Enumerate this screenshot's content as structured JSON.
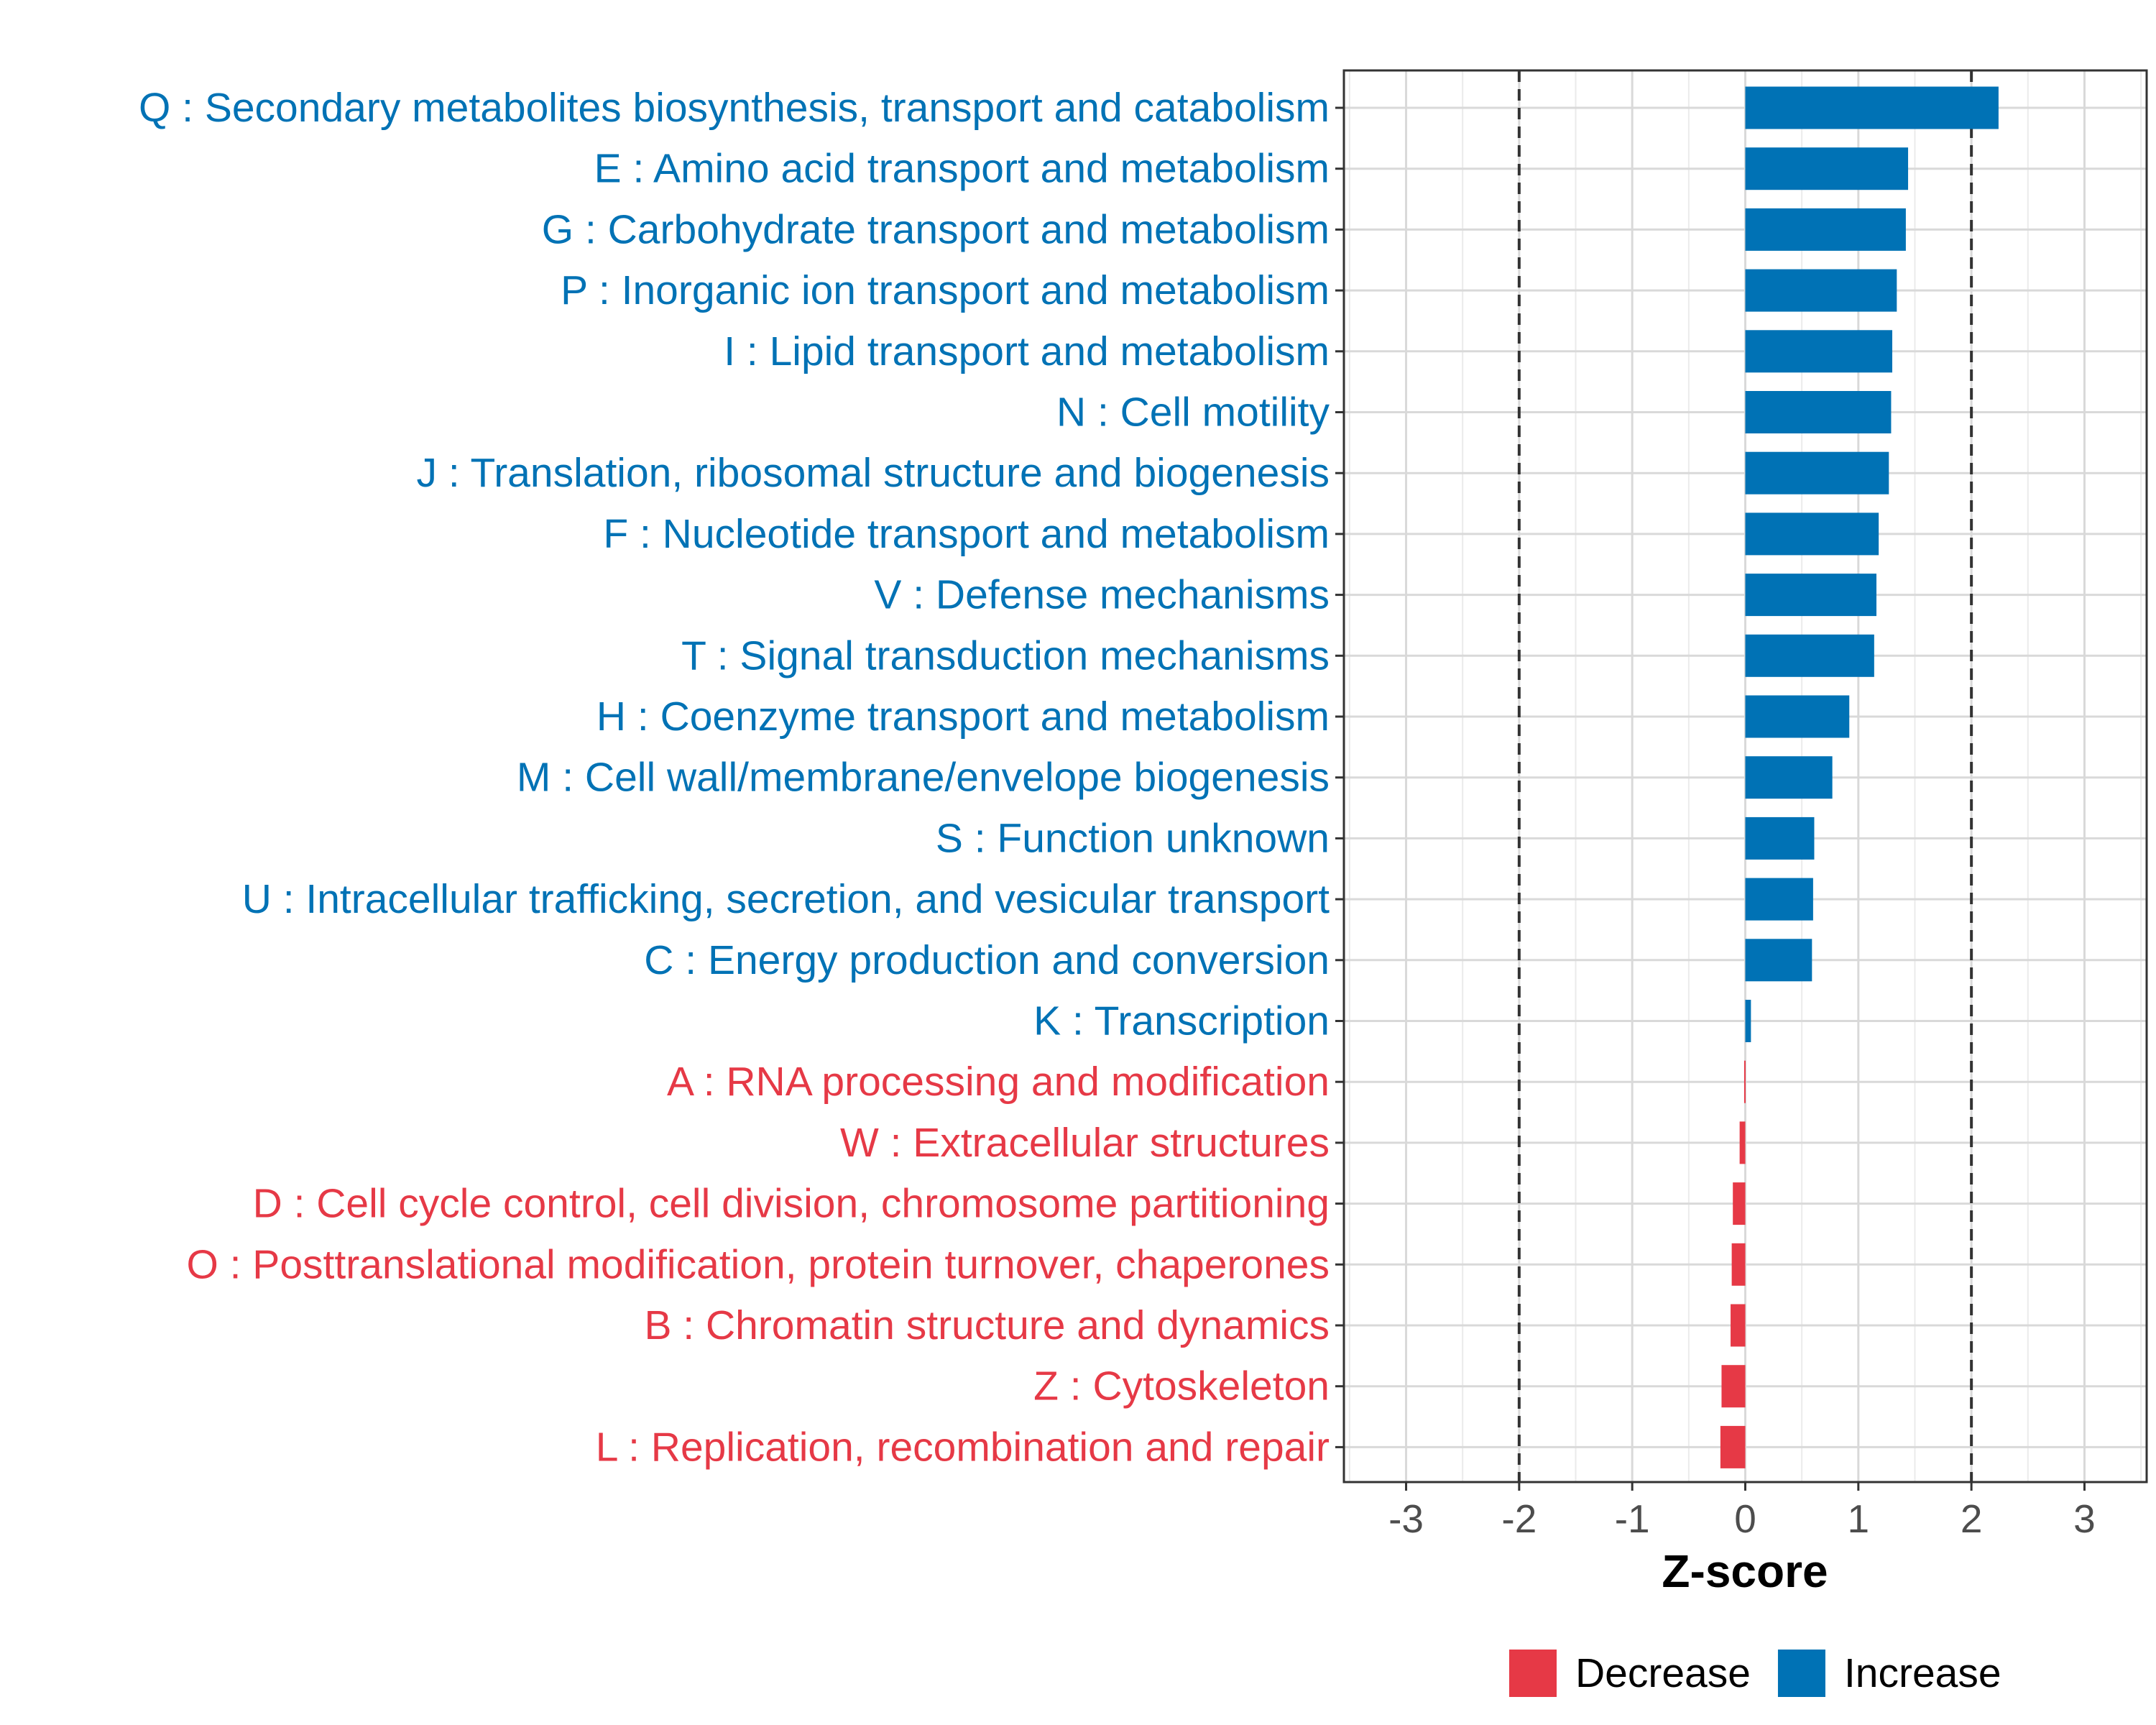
{
  "chart_data": {
    "type": "bar",
    "orientation": "horizontal",
    "xlabel": "Z-score",
    "xlim": [
      -3.55,
      3.55
    ],
    "xticks": [
      -3,
      -2,
      -1,
      0,
      1,
      2,
      3
    ],
    "xtick_labels": [
      "-3",
      "-2",
      "-1",
      "0",
      "1",
      "2",
      "3"
    ],
    "reference_lines": [
      -2,
      2
    ],
    "grid": true,
    "colors": {
      "Increase": "#0072b5",
      "Decrease": "#e63946"
    },
    "categories": [
      "Q : Secondary metabolites biosynthesis, transport and catabolism",
      "E : Amino acid transport and metabolism",
      "G : Carbohydrate transport and metabolism",
      "P : Inorganic ion transport and metabolism",
      "I : Lipid transport and metabolism",
      "N : Cell motility",
      "J : Translation, ribosomal structure and biogenesis",
      "F : Nucleotide transport and metabolism",
      "V : Defense mechanisms",
      "T : Signal transduction mechanisms",
      "H : Coenzyme transport and metabolism",
      "M : Cell wall/membrane/envelope biogenesis",
      "S : Function unknown",
      "U : Intracellular trafficking, secretion, and vesicular transport",
      "C : Energy production and conversion",
      "K : Transcription",
      "A : RNA processing and modification",
      "W : Extracellular structures",
      "D : Cell cycle control, cell division, chromosome partitioning",
      "O : Posttranslational modification, protein turnover, chaperones",
      "B : Chromatin structure and dynamics",
      "Z : Cytoskeleton",
      "L : Replication, recombination and repair"
    ],
    "values": [
      2.24,
      1.44,
      1.42,
      1.34,
      1.3,
      1.29,
      1.27,
      1.18,
      1.16,
      1.14,
      0.92,
      0.77,
      0.61,
      0.6,
      0.59,
      0.05,
      -0.01,
      -0.05,
      -0.11,
      -0.12,
      -0.13,
      -0.21,
      -0.22
    ],
    "groups": [
      "Increase",
      "Increase",
      "Increase",
      "Increase",
      "Increase",
      "Increase",
      "Increase",
      "Increase",
      "Increase",
      "Increase",
      "Increase",
      "Increase",
      "Increase",
      "Increase",
      "Increase",
      "Increase",
      "Decrease",
      "Decrease",
      "Decrease",
      "Decrease",
      "Decrease",
      "Decrease",
      "Decrease"
    ],
    "legend": {
      "placement": "bottom",
      "entries": [
        {
          "name": "Decrease",
          "color": "#e63946"
        },
        {
          "name": "Increase",
          "color": "#0072b5"
        }
      ]
    }
  }
}
